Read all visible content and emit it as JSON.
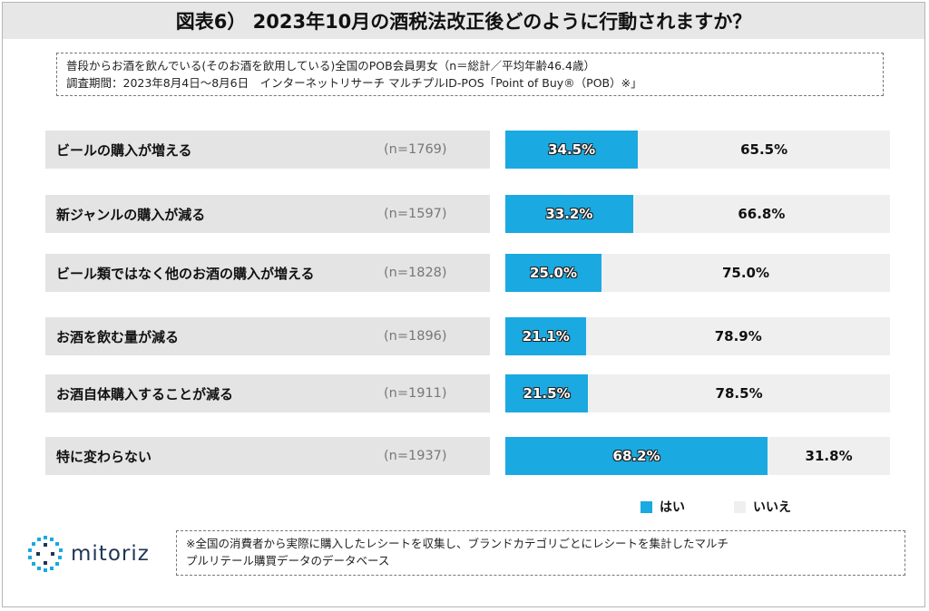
{
  "title": "図表6） 2023年10月の酒税法改正後どのように行動されますか？",
  "info": {
    "line1": "普段からお酒を飲んでいる(そのお酒を飲用している)全国のPOB会員男女（n＝総計／平均年齢46.4歳）",
    "line2": "調査期間：2023年8月4日～8月6日　インターネットリサーチ マルチプルID-POS「Point of Buy®（POB）※」"
  },
  "chart_data": {
    "type": "bar",
    "stacked": true,
    "orientation": "horizontal",
    "unit": "%",
    "categories": [
      "ビールの購入が増える",
      "新ジャンルの購入が減る",
      "ビール類ではなく他のお酒の購入が増える",
      "お酒を飲む量が減る",
      "お酒自体購入することが減る",
      "特に変わらない"
    ],
    "n_labels": [
      "(n=1769)",
      "(n=1597)",
      "(n=1828)",
      "(n=1896)",
      "(n=1911)",
      "(n=1937)"
    ],
    "series": [
      {
        "name": "はい",
        "values": [
          34.5,
          33.2,
          25.0,
          21.1,
          21.5,
          68.2
        ],
        "labels": [
          "34.5%",
          "33.2%",
          "25.0%",
          "21.1%",
          "21.5%",
          "68.2%"
        ]
      },
      {
        "name": "いいえ",
        "values": [
          65.5,
          66.8,
          75.0,
          78.9,
          78.5,
          31.8
        ],
        "labels": [
          "65.5%",
          "66.8%",
          "75.0%",
          "78.9%",
          "78.5%",
          "31.8%"
        ]
      }
    ],
    "xlim": [
      0,
      100
    ],
    "legend_position": "bottom-right"
  },
  "colors": {
    "yes": "#1aa9e0",
    "no": "#efefef"
  },
  "logo": {
    "text": "mitoriz",
    "icon": "mitoriz-logo-icon"
  },
  "note": {
    "line1": "※全国の消費者から実際に購入したレシートを収集し、ブランドカテゴリごとにレシートを集計したマルチ",
    "line2": "プルリテール購買データのデータベース"
  }
}
